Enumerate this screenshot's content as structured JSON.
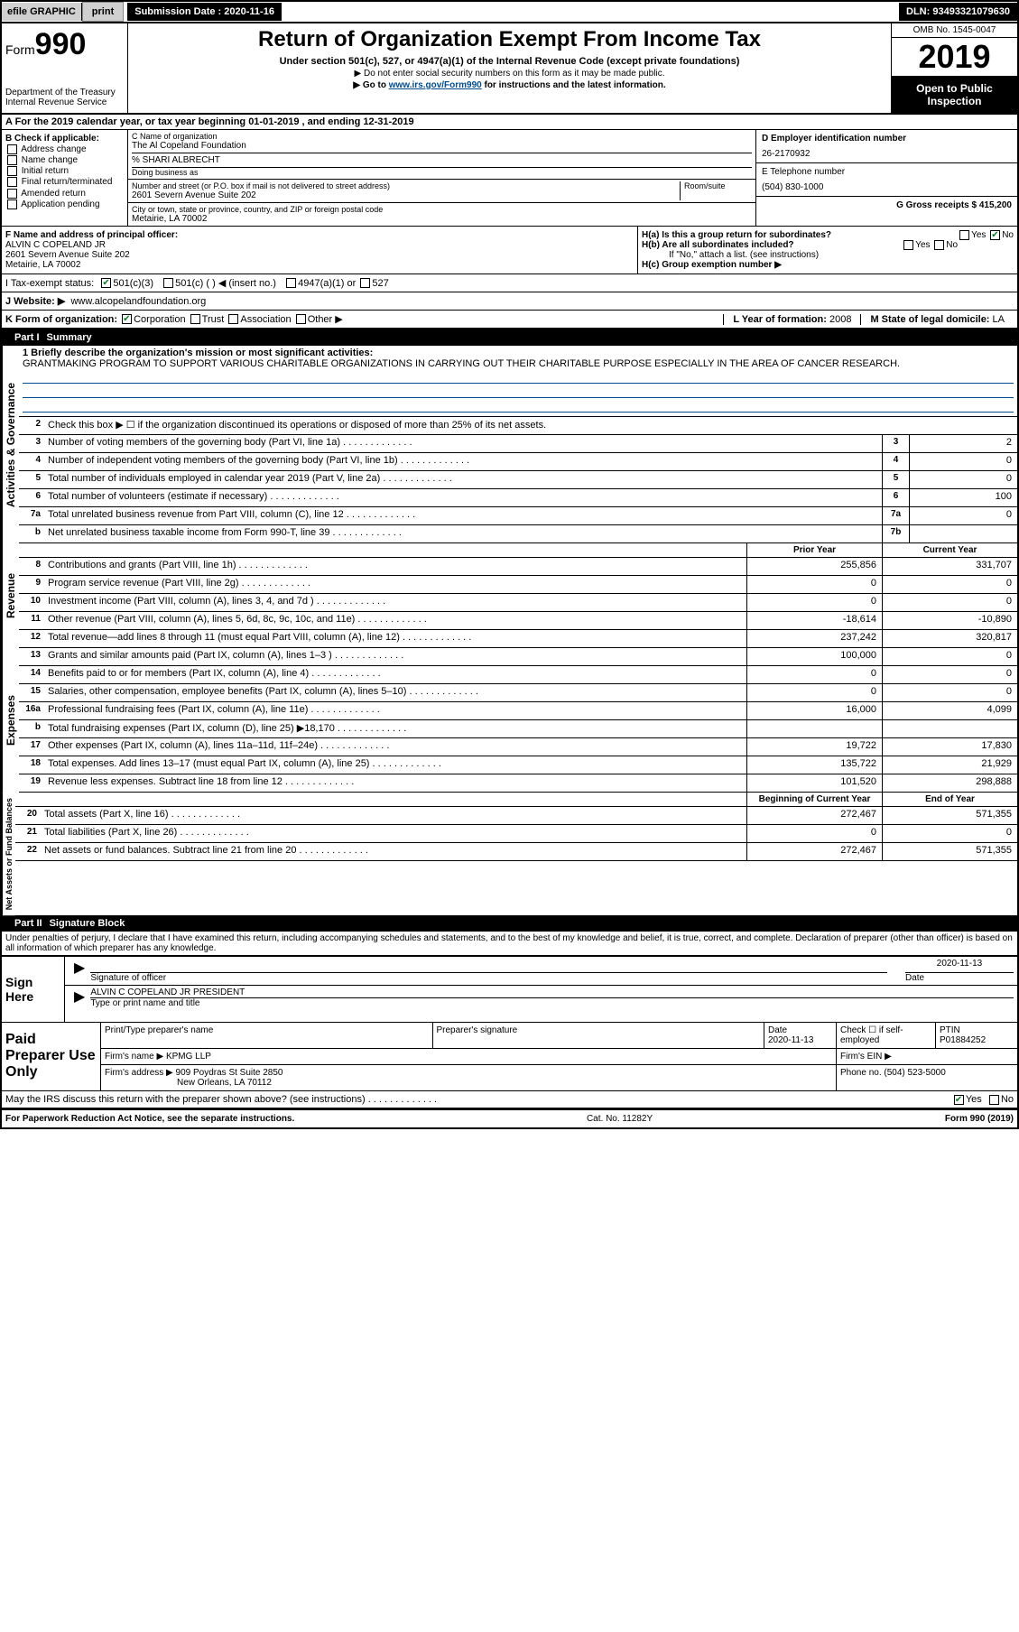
{
  "topbar": {
    "efile": "efile GRAPHIC",
    "print": "print",
    "submission_label": "Submission Date : ",
    "submission_date": "2020-11-16",
    "dln_label": "DLN: ",
    "dln": "93493321079630"
  },
  "header": {
    "form_label": "Form",
    "form_number": "990",
    "dept": "Department of the Treasury",
    "irs": "Internal Revenue Service",
    "title": "Return of Organization Exempt From Income Tax",
    "subtitle": "Under section 501(c), 527, or 4947(a)(1) of the Internal Revenue Code (except private foundations)",
    "note1": "▶ Do not enter social security numbers on this form as it may be made public.",
    "note2_pre": "▶ Go to ",
    "note2_link": "www.irs.gov/Form990",
    "note2_post": " for instructions and the latest information.",
    "omb": "OMB No. 1545-0047",
    "year": "2019",
    "opi": "Open to Public Inspection"
  },
  "row_a": "A For the 2019 calendar year, or tax year beginning 01-01-2019   , and ending 12-31-2019",
  "col_b": {
    "hdr": "B Check if applicable:",
    "items": [
      "Address change",
      "Name change",
      "Initial return",
      "Final return/terminated",
      "Amended return",
      "Application pending"
    ]
  },
  "col_c": {
    "name_lbl": "C Name of organization",
    "name": "The Al Copeland Foundation",
    "care_of": "% SHARI ALBRECHT",
    "dba_lbl": "Doing business as",
    "addr_lbl": "Number and street (or P.O. box if mail is not delivered to street address)",
    "suite_lbl": "Room/suite",
    "addr": "2601 Severn Avenue Suite 202",
    "city_lbl": "City or town, state or province, country, and ZIP or foreign postal code",
    "city": "Metairie, LA  70002"
  },
  "col_d": {
    "ein_lbl": "D Employer identification number",
    "ein": "26-2170932",
    "tel_lbl": "E Telephone number",
    "tel": "(504) 830-1000",
    "gross_lbl": "G Gross receipts $ ",
    "gross": "415,200"
  },
  "f": {
    "lbl": "F  Name and address of principal officer:",
    "name": "ALVIN C COPELAND JR",
    "addr1": "2601 Severn Avenue Suite 202",
    "addr2": "Metairie, LA  70002"
  },
  "h": {
    "a_lbl": "H(a)  Is this a group return for subordinates?",
    "a_yes": "Yes",
    "a_no": "No",
    "b_lbl": "H(b)  Are all subordinates included?",
    "b_yes": "Yes",
    "b_no": "No",
    "b_note": "If \"No,\" attach a list. (see instructions)",
    "c_lbl": "H(c)  Group exemption number ▶"
  },
  "tax_status": {
    "lbl": "I  Tax-exempt status:",
    "c3": "501(c)(3)",
    "c": "501(c) (  ) ◀ (insert no.)",
    "a1": "4947(a)(1) or",
    "s527": "527"
  },
  "website": {
    "lbl": "J  Website: ▶",
    "val": "www.alcopelandfoundation.org"
  },
  "k": {
    "lbl": "K Form of organization:",
    "corp": "Corporation",
    "trust": "Trust",
    "assoc": "Association",
    "other": "Other ▶"
  },
  "lm": {
    "l_lbl": "L Year of formation: ",
    "l_val": "2008",
    "m_lbl": "M State of legal domicile: ",
    "m_val": "LA"
  },
  "part1": {
    "hdr_num": "Part I",
    "hdr_title": "Summary",
    "sec_labels": {
      "ag": "Activities & Governance",
      "rev": "Revenue",
      "exp": "Expenses",
      "na": "Net Assets or Fund Balances"
    },
    "l1_lbl": "1  Briefly describe the organization's mission or most significant activities:",
    "l1_text": "GRANTMAKING PROGRAM TO SUPPORT VARIOUS CHARITABLE ORGANIZATIONS IN CARRYING OUT THEIR CHARITABLE PURPOSE ESPECIALLY IN THE AREA OF CANCER RESEARCH.",
    "l2": "Check this box ▶ ☐  if the organization discontinued its operations or disposed of more than 25% of its net assets.",
    "lines_ag": [
      {
        "n": "3",
        "d": "Number of voting members of the governing body (Part VI, line 1a)",
        "b": "3",
        "v": "2"
      },
      {
        "n": "4",
        "d": "Number of independent voting members of the governing body (Part VI, line 1b)",
        "b": "4",
        "v": "0"
      },
      {
        "n": "5",
        "d": "Total number of individuals employed in calendar year 2019 (Part V, line 2a)",
        "b": "5",
        "v": "0"
      },
      {
        "n": "6",
        "d": "Total number of volunteers (estimate if necessary)",
        "b": "6",
        "v": "100"
      },
      {
        "n": "7a",
        "d": "Total unrelated business revenue from Part VIII, column (C), line 12",
        "b": "7a",
        "v": "0"
      },
      {
        "n": "b",
        "d": "Net unrelated business taxable income from Form 990-T, line 39",
        "b": "7b",
        "v": ""
      }
    ],
    "col_hdrs": {
      "py": "Prior Year",
      "cy": "Current Year",
      "bcy": "Beginning of Current Year",
      "eoy": "End of Year"
    },
    "lines_rev": [
      {
        "n": "8",
        "d": "Contributions and grants (Part VIII, line 1h)",
        "py": "255,856",
        "cy": "331,707"
      },
      {
        "n": "9",
        "d": "Program service revenue (Part VIII, line 2g)",
        "py": "0",
        "cy": "0"
      },
      {
        "n": "10",
        "d": "Investment income (Part VIII, column (A), lines 3, 4, and 7d )",
        "py": "0",
        "cy": "0"
      },
      {
        "n": "11",
        "d": "Other revenue (Part VIII, column (A), lines 5, 6d, 8c, 9c, 10c, and 11e)",
        "py": "-18,614",
        "cy": "-10,890"
      },
      {
        "n": "12",
        "d": "Total revenue—add lines 8 through 11 (must equal Part VIII, column (A), line 12)",
        "py": "237,242",
        "cy": "320,817"
      }
    ],
    "lines_exp": [
      {
        "n": "13",
        "d": "Grants and similar amounts paid (Part IX, column (A), lines 1–3 )",
        "py": "100,000",
        "cy": "0"
      },
      {
        "n": "14",
        "d": "Benefits paid to or for members (Part IX, column (A), line 4)",
        "py": "0",
        "cy": "0"
      },
      {
        "n": "15",
        "d": "Salaries, other compensation, employee benefits (Part IX, column (A), lines 5–10)",
        "py": "0",
        "cy": "0"
      },
      {
        "n": "16a",
        "d": "Professional fundraising fees (Part IX, column (A), line 11e)",
        "py": "16,000",
        "cy": "4,099"
      },
      {
        "n": "b",
        "d": "Total fundraising expenses (Part IX, column (D), line 25) ▶18,170",
        "py": "shade",
        "cy": "shade"
      },
      {
        "n": "17",
        "d": "Other expenses (Part IX, column (A), lines 11a–11d, 11f–24e)",
        "py": "19,722",
        "cy": "17,830"
      },
      {
        "n": "18",
        "d": "Total expenses. Add lines 13–17 (must equal Part IX, column (A), line 25)",
        "py": "135,722",
        "cy": "21,929"
      },
      {
        "n": "19",
        "d": "Revenue less expenses. Subtract line 18 from line 12",
        "py": "101,520",
        "cy": "298,888"
      }
    ],
    "lines_na": [
      {
        "n": "20",
        "d": "Total assets (Part X, line 16)",
        "py": "272,467",
        "cy": "571,355"
      },
      {
        "n": "21",
        "d": "Total liabilities (Part X, line 26)",
        "py": "0",
        "cy": "0"
      },
      {
        "n": "22",
        "d": "Net assets or fund balances. Subtract line 21 from line 20",
        "py": "272,467",
        "cy": "571,355"
      }
    ]
  },
  "part2": {
    "hdr_num": "Part II",
    "hdr_title": "Signature Block",
    "decl": "Under penalties of perjury, I declare that I have examined this return, including accompanying schedules and statements, and to the best of my knowledge and belief, it is true, correct, and complete. Declaration of preparer (other than officer) is based on all information of which preparer has any knowledge.",
    "sign_here": "Sign Here",
    "sig_officer_lbl": "Signature of officer",
    "date_lbl": "Date",
    "sig_date": "2020-11-13",
    "officer_name": "ALVIN C COPELAND JR  PRESIDENT",
    "officer_name_lbl": "Type or print name and title",
    "paid": "Paid Preparer Use Only",
    "prep_name_lbl": "Print/Type preparer's name",
    "prep_sig_lbl": "Preparer's signature",
    "prep_date_lbl": "Date",
    "prep_date": "2020-11-13",
    "check_lbl": "Check ☐ if self-employed",
    "ptin_lbl": "PTIN",
    "ptin": "P01884252",
    "firm_name_lbl": "Firm's name    ▶",
    "firm_name": "KPMG LLP",
    "firm_ein_lbl": "Firm's EIN ▶",
    "firm_addr_lbl": "Firm's address ▶",
    "firm_addr1": "909 Poydras St Suite 2850",
    "firm_addr2": "New Orleans, LA  70112",
    "phone_lbl": "Phone no. ",
    "phone": "(504) 523-5000",
    "discuss": "May the IRS discuss this return with the preparer shown above? (see instructions)",
    "discuss_yes": "Yes",
    "discuss_no": "No"
  },
  "footer": {
    "left": "For Paperwork Reduction Act Notice, see the separate instructions.",
    "mid": "Cat. No. 11282Y",
    "right": "Form 990 (2019)"
  }
}
